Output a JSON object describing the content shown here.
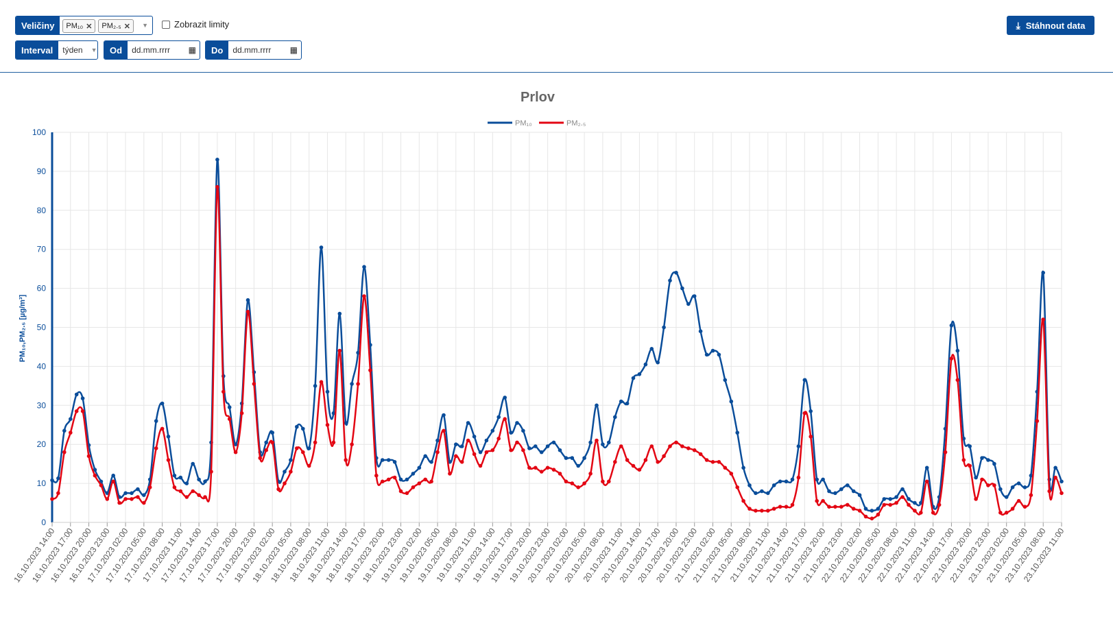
{
  "toolbar": {
    "quantities_label": "Veličiny",
    "quantities_chips": [
      "PM₁₀",
      "PM₂.₅"
    ],
    "show_limits_label": "Zobrazit limity",
    "interval_label": "Interval",
    "interval_value": "týden",
    "from_label": "Od",
    "from_value": "dd.mm.rrrr",
    "to_label": "Do",
    "to_value": "dd.mm.rrrr",
    "download_label": "Stáhnout data",
    "download_icon": "download-icon",
    "calendar_icon": "calendar-icon"
  },
  "colors": {
    "brand": "#0a4d9a",
    "pm10": "#0a4d9a",
    "pm25": "#e30613",
    "grid": "#e6e6e6"
  },
  "chart_data": {
    "type": "line",
    "title": "Prlov",
    "ylabel": "PM₁₀,PM₂.₅ [µg/m³]",
    "ylim": [
      0,
      100
    ],
    "yticks": [
      0,
      10,
      20,
      30,
      40,
      50,
      60,
      70,
      80,
      90,
      100
    ],
    "grid": true,
    "legend": "top-center",
    "x_tick_labels": [
      "16.10.2023 14:00",
      "16.10.2023 17:00",
      "16.10.2023 20:00",
      "16.10.2023 23:00",
      "17.10.2023 02:00",
      "17.10.2023 05:00",
      "17.10.2023 08:00",
      "17.10.2023 11:00",
      "17.10.2023 14:00",
      "17.10.2023 17:00",
      "17.10.2023 20:00",
      "17.10.2023 23:00",
      "18.10.2023 02:00",
      "18.10.2023 05:00",
      "18.10.2023 08:00",
      "18.10.2023 11:00",
      "18.10.2023 14:00",
      "18.10.2023 17:00",
      "18.10.2023 20:00",
      "18.10.2023 23:00",
      "19.10.2023 02:00",
      "19.10.2023 05:00",
      "19.10.2023 08:00",
      "19.10.2023 11:00",
      "19.10.2023 14:00",
      "19.10.2023 17:00",
      "19.10.2023 20:00",
      "19.10.2023 23:00",
      "20.10.2023 02:00",
      "20.10.2023 05:00",
      "20.10.2023 08:00",
      "20.10.2023 11:00",
      "20.10.2023 14:00",
      "20.10.2023 17:00",
      "20.10.2023 20:00",
      "20.10.2023 23:00",
      "21.10.2023 02:00",
      "21.10.2023 05:00",
      "21.10.2023 08:00",
      "21.10.2023 11:00",
      "21.10.2023 14:00",
      "21.10.2023 17:00",
      "21.10.2023 20:00",
      "21.10.2023 23:00",
      "22.10.2023 02:00",
      "22.10.2023 05:00",
      "22.10.2023 08:00",
      "22.10.2023 11:00",
      "22.10.2023 14:00",
      "22.10.2023 17:00",
      "22.10.2023 20:00",
      "22.10.2023 23:00",
      "23.10.2023 02:00",
      "23.10.2023 05:00",
      "23.10.2023 08:00",
      "23.10.2023 11:00"
    ],
    "series": [
      {
        "name": "PM₁₀",
        "color": "#0a4d9a",
        "values": [
          10.8,
          11.3,
          23.5,
          26.5,
          32.8,
          31.8,
          19.8,
          13.5,
          10.5,
          7.5,
          12.0,
          6.5,
          7.5,
          7.5,
          8.5,
          7.0,
          11.0,
          26.0,
          30.5,
          22.0,
          12.0,
          11.5,
          10.0,
          15.0,
          11.0,
          10.5,
          20.5,
          93.0,
          37.5,
          29.5,
          20.0,
          30.5,
          57.0,
          38.5,
          18.0,
          20.5,
          23.0,
          10.5,
          13.0,
          16.0,
          24.5,
          24.0,
          19.0,
          35.0,
          70.5,
          33.5,
          28.0,
          53.5,
          25.5,
          35.5,
          43.5,
          65.5,
          45.5,
          16.5,
          16.0,
          16.0,
          15.5,
          11.0,
          11.0,
          12.5,
          14.0,
          17.0,
          15.5,
          21.0,
          27.5,
          15.5,
          20.0,
          19.5,
          25.5,
          22.0,
          18.0,
          21.0,
          23.5,
          27.0,
          32.0,
          23.0,
          25.5,
          23.5,
          19.0,
          19.5,
          18.0,
          19.5,
          20.5,
          18.5,
          16.5,
          16.5,
          14.5,
          16.5,
          20.5,
          30.0,
          20.0,
          20.5,
          27.0,
          31.0,
          30.5,
          37.0,
          38.0,
          40.5,
          44.5,
          41.0,
          50.0,
          62.0,
          64.0,
          60.0,
          56.0,
          58.0,
          49.0,
          43.0,
          44.0,
          43.0,
          36.5,
          31.0,
          23.0,
          14.0,
          9.5,
          7.5,
          8.0,
          7.5,
          9.5,
          10.5,
          10.5,
          11.0,
          19.5,
          36.5,
          28.5,
          11.0,
          11.0,
          8.0,
          7.5,
          8.5,
          9.5,
          8.0,
          7.0,
          3.5,
          3.0,
          3.5,
          6.0,
          6.0,
          6.5,
          8.5,
          6.0,
          5.0,
          5.0,
          14.0,
          4.0,
          6.5,
          24.0,
          50.5,
          44.0,
          21.5,
          19.5,
          11.5,
          16.5,
          16.0,
          15.0,
          8.5,
          6.5,
          9.0,
          10.0,
          9.0,
          12.0,
          33.5,
          64.0,
          11.0,
          14.0,
          10.5
        ]
      },
      {
        "name": "PM₂.₅",
        "color": "#e30613",
        "values": [
          6.0,
          7.5,
          18.0,
          23.0,
          28.5,
          28.5,
          17.0,
          12.0,
          9.5,
          6.0,
          10.5,
          5.0,
          6.0,
          6.0,
          6.5,
          5.0,
          9.0,
          19.0,
          24.0,
          16.0,
          9.0,
          8.0,
          6.5,
          8.0,
          7.0,
          6.5,
          13.0,
          86.0,
          33.5,
          26.5,
          18.0,
          28.0,
          54.0,
          35.5,
          16.5,
          18.5,
          20.5,
          8.5,
          10.0,
          13.0,
          19.0,
          18.0,
          14.5,
          20.5,
          36.0,
          25.0,
          20.5,
          44.0,
          16.0,
          20.0,
          35.5,
          58.0,
          39.0,
          12.0,
          10.5,
          11.0,
          11.5,
          8.0,
          7.5,
          9.0,
          10.0,
          11.0,
          10.5,
          18.0,
          23.5,
          12.5,
          17.0,
          15.5,
          21.0,
          17.5,
          14.5,
          18.0,
          18.5,
          21.5,
          26.5,
          18.5,
          20.5,
          18.5,
          14.0,
          14.0,
          13.0,
          14.0,
          13.5,
          12.5,
          10.5,
          10.0,
          9.0,
          10.0,
          12.5,
          21.0,
          10.5,
          10.5,
          15.5,
          19.5,
          16.0,
          14.5,
          13.5,
          16.0,
          19.5,
          15.5,
          17.0,
          19.5,
          20.5,
          19.5,
          19.0,
          18.5,
          17.5,
          16.0,
          15.5,
          15.5,
          14.0,
          12.5,
          9.0,
          5.5,
          3.5,
          3.0,
          3.0,
          3.0,
          3.5,
          4.0,
          4.0,
          4.5,
          11.5,
          28.0,
          22.0,
          5.5,
          5.5,
          4.0,
          4.0,
          4.0,
          4.5,
          3.5,
          3.0,
          1.5,
          1.0,
          2.0,
          4.5,
          4.5,
          5.0,
          6.5,
          4.5,
          3.0,
          2.5,
          10.5,
          2.5,
          4.5,
          18.0,
          42.0,
          36.5,
          16.0,
          14.5,
          6.0,
          11.0,
          9.5,
          9.5,
          2.5,
          2.5,
          3.5,
          5.5,
          4.0,
          7.0,
          26.0,
          52.0,
          8.0,
          11.5,
          7.5
        ]
      }
    ]
  }
}
